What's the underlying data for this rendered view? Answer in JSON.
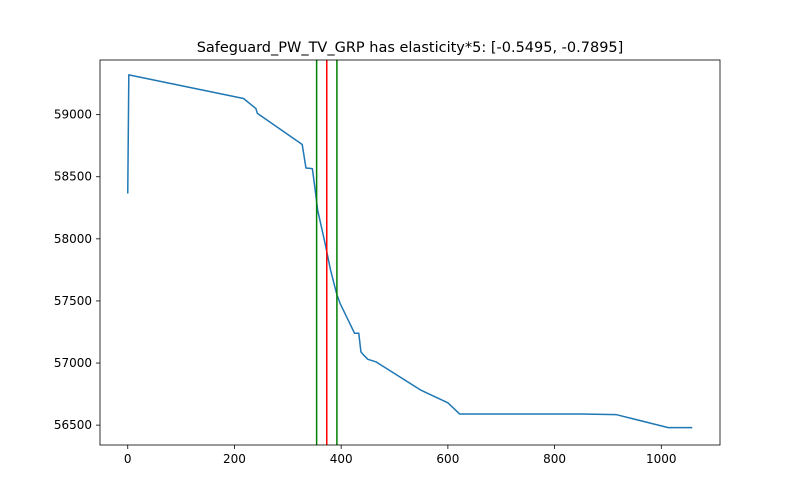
{
  "chart_data": {
    "type": "line",
    "title": "Safeguard_PW_TV_GRP has elasticity*5:   [-0.5495, -0.7895]",
    "xlabel": "",
    "ylabel": "",
    "xlim": [
      -52,
      1110
    ],
    "ylim": [
      56340,
      59440
    ],
    "x_ticks": [
      0,
      200,
      400,
      600,
      800,
      1000
    ],
    "y_ticks": [
      56500,
      57000,
      57500,
      58000,
      58500,
      59000
    ],
    "x_tick_labels": [
      "0",
      "200",
      "400",
      "600",
      "800",
      "1000"
    ],
    "y_tick_labels": [
      "56500",
      "57000",
      "57500",
      "58000",
      "58500",
      "59000"
    ],
    "grid": false,
    "series": [
      {
        "color": "#1f77b4",
        "x": [
          0,
          2,
          217,
          240,
          243,
          327,
          334,
          346,
          352,
          356,
          370,
          380,
          392,
          398,
          425,
          433,
          437,
          443,
          450,
          465,
          550,
          600,
          622,
          850,
          915,
          1013,
          1058
        ],
        "y": [
          58365,
          59320,
          59130,
          59050,
          59010,
          58760,
          58570,
          58565,
          58370,
          58230,
          57960,
          57750,
          57550,
          57480,
          57240,
          57240,
          57090,
          57060,
          57030,
          57010,
          56780,
          56680,
          56590,
          56590,
          56585,
          56480,
          56480
        ]
      }
    ],
    "vlines": [
      {
        "x": 354,
        "color": "#008000"
      },
      {
        "x": 373,
        "color": "#ff0000"
      },
      {
        "x": 392,
        "color": "#008000"
      }
    ]
  }
}
